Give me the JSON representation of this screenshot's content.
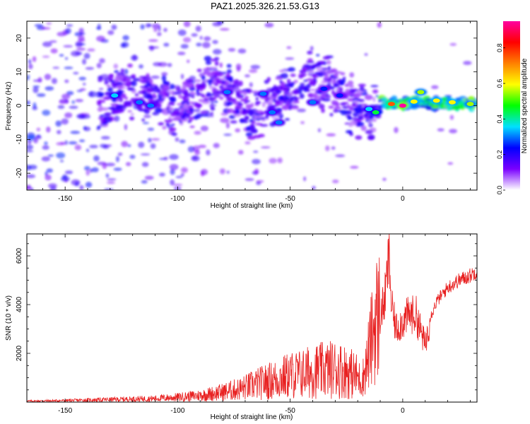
{
  "title": "PAZ1.2025.326.21.53.G13",
  "colors": {
    "snr_line": "#e82020",
    "axis": "#000000",
    "background": "#ffffff"
  },
  "chart_data": [
    {
      "type": "heatmap",
      "name": "spectrogram",
      "xlabel": "Height of straight line (km)",
      "ylabel": "Frequency (Hz)",
      "xlim": [
        -167,
        33
      ],
      "ylim": [
        -25,
        25
      ],
      "xticks": [
        -150,
        -100,
        -50,
        0
      ],
      "yticks": [
        -20,
        -10,
        0,
        10,
        20
      ],
      "colorbar": {
        "label": "Normalized spectral amplitude",
        "range": [
          0,
          0.95
        ],
        "ticks": [
          0.0,
          0.2,
          0.4,
          0.6,
          0.8
        ],
        "tick_labels": [
          "0.0",
          "0.2",
          "0.4",
          "0.6",
          "0.8"
        ],
        "colormap": [
          "#ffffff",
          "#7a00ff",
          "#0000ff",
          "#00e0ff",
          "#00ff00",
          "#ffff00",
          "#ff8000",
          "#ff0000",
          "#ff00a0"
        ]
      },
      "features": [
        {
          "x": 0,
          "y": 0,
          "value": 0.95
        },
        {
          "x": -5,
          "y": 0.5,
          "value": 0.75
        },
        {
          "x": 5,
          "y": 1.2,
          "value": 0.6
        },
        {
          "x": 8,
          "y": 4,
          "value": 0.55
        },
        {
          "x": 15,
          "y": 1.5,
          "value": 0.6
        },
        {
          "x": 22,
          "y": 1,
          "value": 0.6
        },
        {
          "x": 30,
          "y": 0.5,
          "value": 0.55
        },
        {
          "x": -12,
          "y": -2,
          "value": 0.45
        },
        {
          "x": -15,
          "y": -1,
          "value": 0.35
        },
        {
          "x": -128,
          "y": 3,
          "value": 0.35
        },
        {
          "x": -117,
          "y": 1,
          "value": 0.3
        },
        {
          "x": -112,
          "y": 0,
          "value": 0.3
        },
        {
          "x": -78,
          "y": 4,
          "value": 0.3
        },
        {
          "x": -62,
          "y": 3.5,
          "value": 0.3
        },
        {
          "x": -58,
          "y": -2,
          "value": 0.3
        },
        {
          "x": -55,
          "y": -5,
          "value": 0.3
        },
        {
          "x": -40,
          "y": 1,
          "value": 0.3
        },
        {
          "x": -35,
          "y": 5,
          "value": 0.25
        },
        {
          "x": -28,
          "y": 3,
          "value": 0.25
        }
      ]
    },
    {
      "type": "line",
      "name": "snr",
      "xlabel": "Height of straight line (km)",
      "ylabel": "SNR (10 * v/v)",
      "xlim": [
        -167,
        33
      ],
      "ylim": [
        0,
        6900
      ],
      "xticks": [
        -150,
        -100,
        -50,
        0
      ],
      "yticks": [
        2000,
        4000,
        6000
      ],
      "series": [
        {
          "name": "SNR",
          "x": [
            -167,
            -150,
            -135,
            -125,
            -110,
            -100,
            -90,
            -80,
            -72,
            -65,
            -58,
            -50,
            -45,
            -40,
            -35,
            -30,
            -25,
            -20,
            -18,
            -16,
            -14,
            -12,
            -10,
            -8,
            -6,
            -5,
            -3,
            0,
            3,
            6,
            8,
            10,
            12,
            15,
            20,
            25,
            30,
            33
          ],
          "y": [
            40,
            60,
            90,
            110,
            140,
            190,
            260,
            390,
            520,
            700,
            850,
            1050,
            1100,
            1200,
            1250,
            1300,
            1200,
            1000,
            900,
            1600,
            2500,
            3400,
            3600,
            4300,
            6200,
            4000,
            3100,
            3400,
            3700,
            3650,
            3000,
            2400,
            3500,
            4200,
            4800,
            5100,
            5300,
            5500
          ]
        }
      ]
    }
  ]
}
